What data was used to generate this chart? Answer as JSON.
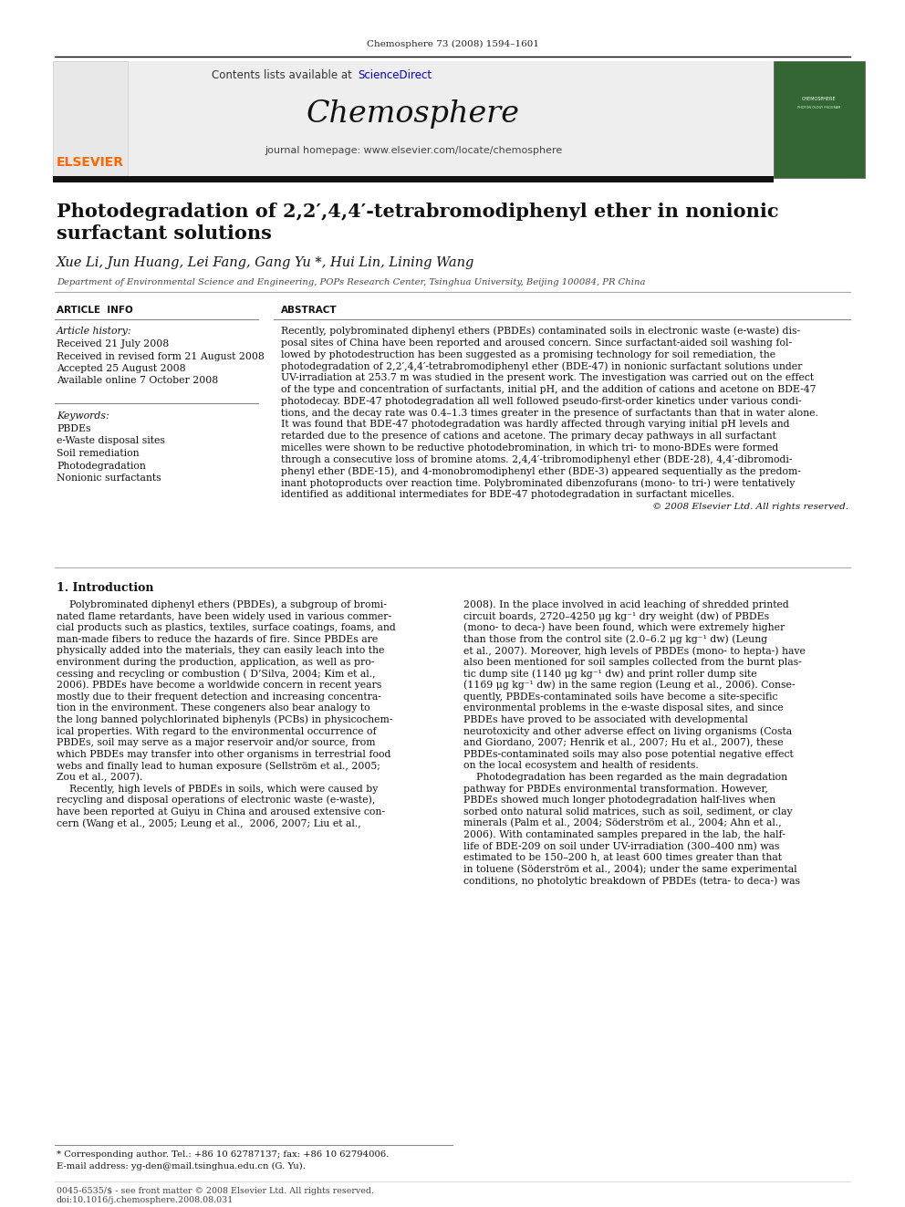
{
  "bg_color": "#ffffff",
  "header_citation": "Chemosphere 73 (2008) 1594–1601",
  "journal_name": "Chemosphere",
  "contents_text": "Contents lists available at ScienceDirect",
  "sciencedirect_color": "#0000cc",
  "journal_homepage": "journal homepage: www.elsevier.com/locate/chemosphere",
  "elsevier_color": "#FF6600",
  "title_line1": "Photodegradation of 2,2′,4,4′-tetrabromodiphenyl ether in nonionic",
  "title_line2": "surfactant solutions",
  "authors": "Xue Li, Jun Huang, Lei Fang, Gang Yu *, Hui Lin, Lining Wang",
  "affiliation": "Department of Environmental Science and Engineering, POPs Research Center, Tsinghua University, Beijing 100084, PR China",
  "article_info_header": "ARTICLE  INFO",
  "article_history_label": "Article history:",
  "article_history": [
    "Received 21 July 2008",
    "Received in revised form 21 August 2008",
    "Accepted 25 August 2008",
    "Available online 7 October 2008"
  ],
  "keywords_label": "Keywords:",
  "keywords": [
    "PBDEs",
    "e-Waste disposal sites",
    "Soil remediation",
    "Photodegradation",
    "Nonionic surfactants"
  ],
  "abstract_header": "ABSTRACT",
  "abstract_lines": [
    "Recently, polybrominated diphenyl ethers (PBDEs) contaminated soils in electronic waste (e-waste) dis-",
    "posal sites of China have been reported and aroused concern. Since surfactant-aided soil washing fol-",
    "lowed by photodestruction has been suggested as a promising technology for soil remediation, the",
    "photodegradation of 2,2′,4,4′-tetrabromodiphenyl ether (BDE-47) in nonionic surfactant solutions under",
    "UV-irradiation at 253.7 m was studied in the present work. The investigation was carried out on the effect",
    "of the type and concentration of surfactants, initial pH, and the addition of cations and acetone on BDE-47",
    "photodecay. BDE-47 photodegradation all well followed pseudo-first-order kinetics under various condi-",
    "tions, and the decay rate was 0.4–1.3 times greater in the presence of surfactants than that in water alone.",
    "It was found that BDE-47 photodegradation was hardly affected through varying initial pH levels and",
    "retarded due to the presence of cations and acetone. The primary decay pathways in all surfactant",
    "micelles were shown to be reductive photodebromination, in which tri- to mono-BDEs were formed",
    "through a consecutive loss of bromine atoms. 2,4,4′-tribromodiphenyl ether (BDE-28), 4,4′-dibromodi-",
    "phenyl ether (BDE-15), and 4-monobromodiphenyl ether (BDE-3) appeared sequentially as the predom-",
    "inant photoproducts over reaction time. Polybrominated dibenzofurans (mono- to tri-) were tentatively",
    "identified as additional intermediates for BDE-47 photodegradation in surfactant micelles."
  ],
  "abstract_copyright": "© 2008 Elsevier Ltd. All rights reserved.",
  "section1_header": "1. Introduction",
  "intro_col1": [
    "    Polybrominated diphenyl ethers (PBDEs), a subgroup of bromi-",
    "nated flame retardants, have been widely used in various commer-",
    "cial products such as plastics, textiles, surface coatings, foams, and",
    "man-made fibers to reduce the hazards of fire. Since PBDEs are",
    "physically added into the materials, they can easily leach into the",
    "environment during the production, application, as well as pro-",
    "cessing and recycling or combustion ( D’Silva, 2004; Kim et al.,",
    "2006). PBDEs have become a worldwide concern in recent years",
    "mostly due to their frequent detection and increasing concentra-",
    "tion in the environment. These congeners also bear analogy to",
    "the long banned polychlorinated biphenyls (PCBs) in physicochem-",
    "ical properties. With regard to the environmental occurrence of",
    "PBDEs, soil may serve as a major reservoir and/or source, from",
    "which PBDEs may transfer into other organisms in terrestrial food",
    "webs and finally lead to human exposure (Sellström et al., 2005;",
    "Zou et al., 2007).",
    "    Recently, high levels of PBDEs in soils, which were caused by",
    "recycling and disposal operations of electronic waste (e-waste),",
    "have been reported at Guiyu in China and aroused extensive con-",
    "cern (Wang et al., 2005; Leung et al.,  2006, 2007; Liu et al.,"
  ],
  "intro_col2": [
    "2008). In the place involved in acid leaching of shredded printed",
    "circuit boards, 2720–4250 μg kg⁻¹ dry weight (dw) of PBDEs",
    "(mono- to deca-) have been found, which were extremely higher",
    "than those from the control site (2.0–6.2 μg kg⁻¹ dw) (Leung",
    "et al., 2007). Moreover, high levels of PBDEs (mono- to hepta-) have",
    "also been mentioned for soil samples collected from the burnt plas-",
    "tic dump site (1140 μg kg⁻¹ dw) and print roller dump site",
    "(1169 μg kg⁻¹ dw) in the same region (Leung et al., 2006). Conse-",
    "quently, PBDEs-contaminated soils have become a site-specific",
    "environmental problems in the e-waste disposal sites, and since",
    "PBDEs have proved to be associated with developmental",
    "neurotoxicity and other adverse effect on living organisms (Costa",
    "and Giordano, 2007; Henrik et al., 2007; Hu et al., 2007), these",
    "PBDEs-contaminated soils may also pose potential negative effect",
    "on the local ecosystem and health of residents.",
    "    Photodegradation has been regarded as the main degradation",
    "pathway for PBDEs environmental transformation. However,",
    "PBDEs showed much longer photodegradation half-lives when",
    "sorbed onto natural solid matrices, such as soil, sediment, or clay",
    "minerals (Palm et al., 2004; Söderström et al., 2004; Ahn et al.,",
    "2006). With contaminated samples prepared in the lab, the half-",
    "life of BDE-209 on soil under UV-irradiation (300–400 nm) was",
    "estimated to be 150–200 h, at least 600 times greater than that",
    "in toluene (Söderström et al., 2004); under the same experimental",
    "conditions, no photolytic breakdown of PBDEs (tetra- to deca-) was"
  ],
  "footer_text1": "* Corresponding author. Tel.: +86 10 62787137; fax: +86 10 62794006.",
  "footer_text2": "E-mail address: yg-den@mail.tsinghua.edu.cn (G. Yu).",
  "footer_bottom1": "0045-6535/$ - see front matter © 2008 Elsevier Ltd. All rights reserved.",
  "footer_bottom2": "doi:10.1016/j.chemosphere.2008.08.031"
}
